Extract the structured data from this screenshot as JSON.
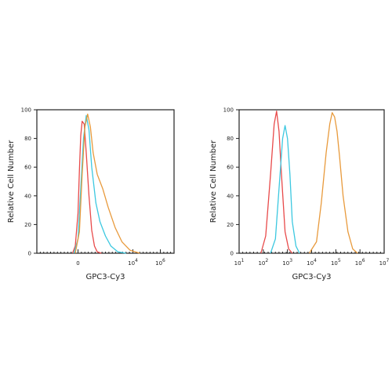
{
  "chart_data": [
    {
      "type": "line",
      "xlabel": "GPC3-Cy3",
      "ylabel": "Relative Cell Number",
      "ylim": [
        0,
        100
      ],
      "xlim": [
        -3,
        7
      ],
      "y_ticks": [
        {
          "value": 0,
          "label": "0"
        },
        {
          "value": 20,
          "label": "20"
        },
        {
          "value": 40,
          "label": "40"
        },
        {
          "value": 60,
          "label": "60"
        },
        {
          "value": 80,
          "label": "80"
        },
        {
          "value": 100,
          "label": "100"
        }
      ],
      "x_ticks": [
        {
          "value": 0,
          "base": "0",
          "exp": ""
        },
        {
          "value": 4,
          "base": "10",
          "exp": "4"
        },
        {
          "value": 6,
          "base": "10",
          "exp": "6"
        }
      ],
      "grid": false,
      "series": [
        {
          "color": "#e84a4a",
          "x": [
            -0.4,
            -0.2,
            0,
            0.1,
            0.2,
            0.3,
            0.45,
            0.6,
            0.8,
            1.0,
            1.2,
            1.4,
            1.7
          ],
          "y": [
            0,
            5,
            28,
            58,
            82,
            92,
            90,
            70,
            40,
            16,
            5,
            1,
            0
          ]
        },
        {
          "color": "#3cc8e0",
          "x": [
            -0.3,
            0,
            0.2,
            0.4,
            0.6,
            0.8,
            1.0,
            1.3,
            1.6,
            2.0,
            2.4,
            2.9,
            3.5
          ],
          "y": [
            0,
            10,
            45,
            80,
            96,
            86,
            60,
            35,
            22,
            12,
            5,
            1,
            0
          ]
        },
        {
          "color": "#e89a3c",
          "x": [
            -0.2,
            0.1,
            0.3,
            0.5,
            0.7,
            0.9,
            1.1,
            1.4,
            1.8,
            2.2,
            2.7,
            3.2,
            3.8,
            4.5
          ],
          "y": [
            0,
            15,
            55,
            88,
            97,
            88,
            70,
            55,
            45,
            32,
            18,
            8,
            2,
            0
          ]
        }
      ]
    },
    {
      "type": "line",
      "xlabel": "GPC3-Cy3",
      "ylabel": "Relative Cell Number",
      "ylim": [
        0,
        100
      ],
      "xlim": [
        1,
        7
      ],
      "y_ticks": [
        {
          "value": 0,
          "label": "0"
        },
        {
          "value": 20,
          "label": "20"
        },
        {
          "value": 40,
          "label": "40"
        },
        {
          "value": 60,
          "label": "60"
        },
        {
          "value": 80,
          "label": "80"
        },
        {
          "value": 100,
          "label": "100"
        }
      ],
      "x_ticks": [
        {
          "value": 1,
          "base": "10",
          "exp": "1"
        },
        {
          "value": 2,
          "base": "10",
          "exp": "2"
        },
        {
          "value": 3,
          "base": "10",
          "exp": "3"
        },
        {
          "value": 4,
          "base": "10",
          "exp": "4"
        },
        {
          "value": 5,
          "base": "10",
          "exp": "5"
        },
        {
          "value": 6,
          "base": "10",
          "exp": "6"
        },
        {
          "value": 7,
          "base": "10",
          "exp": "7"
        }
      ],
      "grid": false,
      "series": [
        {
          "color": "#e84a4a",
          "x": [
            1.9,
            2.1,
            2.3,
            2.45,
            2.55,
            2.65,
            2.75,
            2.9,
            3.05,
            3.2
          ],
          "y": [
            0,
            12,
            55,
            90,
            99,
            85,
            55,
            15,
            3,
            0
          ]
        },
        {
          "color": "#3cc8e0",
          "x": [
            2.3,
            2.5,
            2.65,
            2.8,
            2.9,
            3.0,
            3.1,
            3.2,
            3.35,
            3.5
          ],
          "y": [
            0,
            10,
            45,
            80,
            89,
            80,
            55,
            22,
            5,
            0
          ]
        },
        {
          "color": "#e89a3c",
          "x": [
            3.9,
            4.2,
            4.4,
            4.6,
            4.75,
            4.85,
            4.95,
            5.05,
            5.15,
            5.3,
            5.5,
            5.7,
            5.9
          ],
          "y": [
            0,
            8,
            35,
            70,
            90,
            98,
            95,
            85,
            68,
            40,
            15,
            3,
            0
          ]
        }
      ]
    }
  ]
}
